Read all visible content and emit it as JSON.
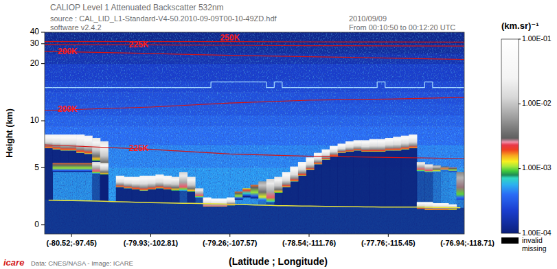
{
  "chart_data": {
    "type": "curtain",
    "title": "CALIOP Level 1 Attenuated Backscatter 532nm",
    "subtitle": "source : CAL_LID_L1-Standard-V4-50.2010-09-09T00-10-49ZD.hdf",
    "annotations": [
      "software v2.4.2",
      "2010/09/09",
      "From 00:10:50 to 00:12:20 UTC"
    ],
    "credits": "Data: CNES/NASA - Image: ICARE",
    "logo": "icare",
    "x_label": "(Latitude ; Longitude)",
    "y_label": "Height (km)",
    "categories": [
      "(-80.52;-97.45)",
      "(-79.93;-102.81)",
      "(-79.26;-107.57)",
      "(-78.54;-111.76)",
      "(-77.76;-115.45)",
      "(-76.94;-118.71)"
    ],
    "xlim": [
      -0.34,
      4.96
    ],
    "ylim": [
      -0.8,
      40
    ],
    "yticks": [
      0,
      5,
      10,
      20,
      30,
      40
    ],
    "colorbar": {
      "label": "(km.sr)⁻¹",
      "range": [
        0.0001,
        0.1
      ],
      "log": true,
      "ticks": [
        {
          "value": 0.1,
          "label": "1.00E-01"
        },
        {
          "value": 0.01,
          "label": "1.00E-02"
        },
        {
          "value": 0.001,
          "label": "1.00E-03"
        },
        {
          "value": 0.0001,
          "label": "1.00E-04"
        }
      ]
    },
    "missing_legend": [
      "invalid",
      "missing"
    ],
    "background": {
      "heights": [
        -0.8,
        1,
        3,
        5,
        7,
        9,
        11,
        13,
        15,
        17,
        20,
        25,
        30,
        40
      ],
      "values": [
        0.0005,
        0.0005,
        0.0005,
        0.00045,
        0.0004,
        0.00035,
        0.0003,
        0.00028,
        0.00025,
        0.00022,
        0.00017,
        0.00014,
        0.00012
      ]
    },
    "x": [
      -0.29,
      -0.19,
      -0.09,
      0.01,
      0.11,
      0.21,
      0.31,
      0.41,
      0.51,
      0.61,
      0.71,
      0.81,
      0.91,
      1.01,
      1.11,
      1.21,
      1.31,
      1.41,
      1.51,
      1.61,
      1.71,
      1.81,
      1.91,
      2.01,
      2.11,
      2.21,
      2.31,
      2.41,
      2.51,
      2.61,
      2.71,
      2.81,
      2.91,
      3.01,
      3.11,
      3.21,
      3.31,
      3.41,
      3.51,
      3.61,
      3.71,
      3.81,
      3.91,
      4.01,
      4.11,
      4.21,
      4.31,
      4.41,
      4.51,
      4.61,
      4.71,
      4.81,
      4.91
    ],
    "layers": [
      {
        "top": [
          7.9,
          7.9,
          7.9,
          7.9,
          7.9,
          7.8,
          7.6,
          7.3,
          null,
          4.3,
          4.2,
          4.2,
          4.3,
          4.3,
          4.4,
          4.3,
          4.2,
          4.6,
          4.2,
          3.2,
          2.4,
          2.3,
          2.3,
          2.4,
          2.9,
          3.2,
          3.5,
          3.8,
          4.0,
          4.2,
          4.6,
          5.1,
          5.5,
          5.9,
          6.3,
          6.6,
          6.9,
          7.1,
          7.3,
          7.4,
          7.4,
          7.5,
          7.5,
          7.6,
          7.7,
          7.8,
          7.9,
          5.5,
          5.3,
          5.2,
          5.1,
          5.0,
          4.6
        ],
        "base": [
          6.7,
          6.6,
          6.5,
          6.5,
          6.3,
          6.2,
          5.6,
          5.0,
          null,
          3.3,
          3.2,
          3.1,
          3.0,
          3.1,
          3.2,
          3.1,
          3.0,
          3.0,
          2.9,
          2.4,
          1.6,
          1.6,
          1.6,
          1.7,
          2.2,
          2.4,
          2.3,
          2.1,
          2.0,
          2.8,
          3.3,
          3.8,
          4.3,
          4.8,
          5.3,
          5.7,
          6.0,
          6.3,
          6.4,
          6.5,
          6.4,
          6.4,
          6.4,
          6.5,
          6.5,
          6.6,
          6.7,
          4.7,
          4.6,
          4.6,
          4.7,
          4.6,
          2.2
        ],
        "values": [
          0.04,
          0.04,
          0.04,
          0.04,
          0.04,
          0.04,
          0.03,
          0.03,
          null,
          0.04,
          0.04,
          0.04,
          0.04,
          0.04,
          0.04,
          0.04,
          0.03,
          0.02,
          0.03,
          0.02,
          0.05,
          0.05,
          0.05,
          0.04,
          0.003,
          0.002,
          0.003,
          0.01,
          0.02,
          0.03,
          0.04,
          0.04,
          0.04,
          0.04,
          0.04,
          0.04,
          0.04,
          0.04,
          0.04,
          0.04,
          0.04,
          0.04,
          0.04,
          0.04,
          0.04,
          0.04,
          0.04,
          0.02,
          0.02,
          0.01,
          0.005,
          0.003,
          0.008
        ]
      },
      {
        "top": [
          null,
          5.4,
          5.4,
          5.4,
          5.4,
          5.4,
          5.5,
          5.4,
          null,
          null,
          null,
          null,
          null,
          null,
          null,
          null,
          null,
          null,
          null,
          null,
          null,
          null,
          null,
          null,
          null,
          null,
          null,
          null,
          null,
          null,
          null,
          null,
          null,
          null,
          null,
          null,
          null,
          null,
          null,
          null,
          null,
          null,
          null,
          null,
          null,
          null,
          null,
          2.0,
          2.0,
          1.9,
          1.9,
          1.8,
          null
        ],
        "base": [
          null,
          4.6,
          4.6,
          4.6,
          4.6,
          4.6,
          4.5,
          4.4,
          null,
          null,
          null,
          null,
          null,
          null,
          null,
          null,
          null,
          null,
          null,
          null,
          null,
          null,
          null,
          null,
          null,
          null,
          null,
          null,
          null,
          null,
          null,
          null,
          null,
          null,
          null,
          null,
          null,
          null,
          null,
          null,
          null,
          null,
          null,
          null,
          null,
          null,
          null,
          1.4,
          1.3,
          1.3,
          1.3,
          1.3,
          null
        ],
        "values": [
          null,
          0.003,
          0.003,
          0.003,
          0.003,
          0.003,
          0.02,
          0.03,
          null,
          null,
          null,
          null,
          null,
          null,
          null,
          null,
          null,
          null,
          null,
          null,
          null,
          null,
          null,
          null,
          null,
          null,
          null,
          null,
          null,
          null,
          null,
          null,
          null,
          null,
          null,
          null,
          null,
          null,
          null,
          null,
          null,
          null,
          null,
          null,
          null,
          null,
          null,
          0.04,
          0.04,
          0.04,
          0.04,
          0.03,
          null
        ]
      }
    ],
    "surface": {
      "values": [
        2.15,
        2.14,
        2.13,
        2.12,
        2.11,
        2.1,
        2.08,
        2.06,
        2.04,
        2.02,
        2.0,
        1.98,
        1.96,
        1.95,
        1.93,
        1.92,
        1.9,
        1.89,
        1.88,
        1.87,
        1.86,
        1.84,
        1.82,
        1.8,
        1.78,
        1.76,
        1.74,
        1.72,
        1.7,
        1.68,
        1.67,
        1.66,
        1.65,
        1.64,
        1.63,
        1.62,
        1.61,
        1.6,
        1.59,
        1.58,
        1.57,
        1.57,
        1.56,
        1.56,
        1.56,
        1.56,
        1.55,
        1.55,
        1.54,
        1.53,
        1.52,
        1.51,
        1.5
      ]
    },
    "tropopause": {
      "values": [
        15.8,
        15.8,
        15.8,
        15.8,
        15.8,
        15.8,
        15.8,
        15.8,
        15.8,
        15.8,
        15.8,
        15.8,
        15.8,
        15.8,
        15.8,
        15.8,
        15.8,
        15.8,
        15.8,
        15.8,
        15.8,
        16.8,
        16.8,
        16.8,
        16.8,
        16.8,
        16.8,
        16.8,
        15.8,
        16.8,
        15.8,
        15.8,
        15.8,
        15.8,
        15.8,
        15.8,
        15.8,
        15.8,
        15.8,
        15.8,
        15.8,
        15.8,
        16.8,
        15.8,
        15.8,
        15.8,
        15.8,
        15.8,
        16.8,
        15.8,
        15.8,
        15.8,
        15.8
      ]
    },
    "contours": [
      {
        "label": "250K",
        "x": [
          -0.34,
          1,
          2,
          3,
          4,
          4.96
        ],
        "heights": [
          31.8,
          31.8,
          31.8,
          31.6,
          31.5,
          31.4
        ]
      },
      {
        "label": "225K",
        "x": [
          -0.34,
          1,
          2,
          3,
          4,
          4.96
        ],
        "heights": [
          29.6,
          29.4,
          29.2,
          29.0,
          28.9,
          28.8
        ]
      },
      {
        "label": "200K",
        "x": [
          -0.34,
          1,
          2,
          3,
          4,
          4.96
        ],
        "heights": [
          26.0,
          24.9,
          23.9,
          23.2,
          22.5,
          21.8
        ]
      },
      {
        "label": "200K",
        "x": [
          -0.34,
          1,
          2,
          3,
          4,
          4.96
        ],
        "heights": [
          11.8,
          12.4,
          13.1,
          13.6,
          13.8,
          14.1
        ]
      },
      {
        "label": "225K",
        "x": [
          -0.34,
          1,
          2,
          3,
          4,
          4.96
        ],
        "heights": [
          7.0,
          6.6,
          6.2,
          6.0,
          5.9,
          5.8
        ]
      }
    ]
  }
}
